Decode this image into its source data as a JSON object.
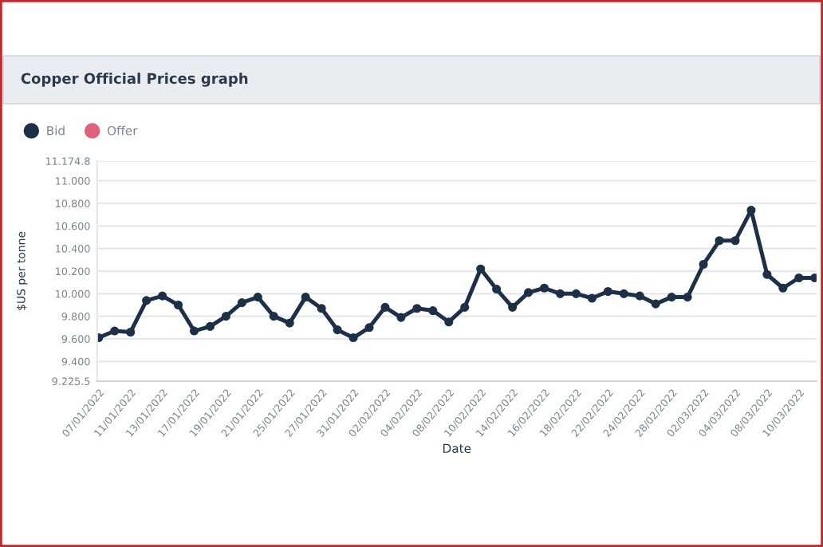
{
  "chart_data": {
    "type": "line",
    "title": "Copper Official Prices graph",
    "xlabel": "Date",
    "ylabel": "$US per tonne",
    "categories": [
      "07/01/2022",
      null,
      "11/01/2022",
      null,
      "13/01/2022",
      null,
      "17/01/2022",
      null,
      "19/01/2022",
      null,
      "21/01/2022",
      null,
      "25/01/2022",
      null,
      "27/01/2022",
      null,
      "31/01/2022",
      null,
      "02/02/2022",
      null,
      "04/02/2022",
      null,
      "08/02/2022",
      null,
      "10/02/2022",
      null,
      "14/02/2022",
      null,
      "16/02/2022",
      null,
      "18/02/2022",
      null,
      "22/02/2022",
      null,
      "24/02/2022",
      null,
      "28/02/2022",
      null,
      "02/03/2022",
      null,
      "04/03/2022",
      null,
      "08/03/2022",
      null,
      "10/03/2022",
      null
    ],
    "series": [
      {
        "name": "Bid",
        "color": "#1e3048",
        "values": [
          9610,
          9670,
          9660,
          9940,
          9980,
          9900,
          9670,
          9710,
          9800,
          9920,
          9970,
          9800,
          9740,
          9970,
          9870,
          9680,
          9610,
          9700,
          9880,
          9790,
          9870,
          9850,
          9750,
          9880,
          10220,
          10040,
          9880,
          10010,
          10050,
          10000,
          10000,
          9960,
          10020,
          10000,
          9980,
          9910,
          9970,
          9970,
          10260,
          10470,
          10470,
          10740,
          10170,
          10050,
          10140,
          10140
        ]
      },
      {
        "name": "Offer",
        "color": "#e0607e",
        "values": [
          null,
          null,
          null,
          null,
          null,
          null,
          null,
          null,
          null,
          null,
          null,
          null,
          null,
          null,
          null,
          null,
          null,
          null,
          null,
          null,
          null,
          null,
          null,
          null,
          null,
          null,
          null,
          null,
          null,
          null,
          null,
          null,
          null,
          null,
          null,
          null,
          null,
          null,
          null,
          null,
          null,
          null,
          null,
          null,
          null,
          null
        ]
      }
    ],
    "ylim": [
      9225.5,
      11174.8
    ],
    "yticks": [
      {
        "value": 9225.5,
        "label": "9.225.5"
      },
      {
        "value": 9400,
        "label": "9.400"
      },
      {
        "value": 9600,
        "label": "9.600"
      },
      {
        "value": 9800,
        "label": "9.800"
      },
      {
        "value": 10000,
        "label": "10.000"
      },
      {
        "value": 10200,
        "label": "10.200"
      },
      {
        "value": 10400,
        "label": "10.400"
      },
      {
        "value": 10600,
        "label": "10.600"
      },
      {
        "value": 10800,
        "label": "10.800"
      },
      {
        "value": 11000,
        "label": "11.000"
      },
      {
        "value": 11174.8,
        "label": "11.174.8"
      }
    ],
    "grid": "y",
    "legend": "top left",
    "marker": "circle",
    "line_style": "solid"
  }
}
